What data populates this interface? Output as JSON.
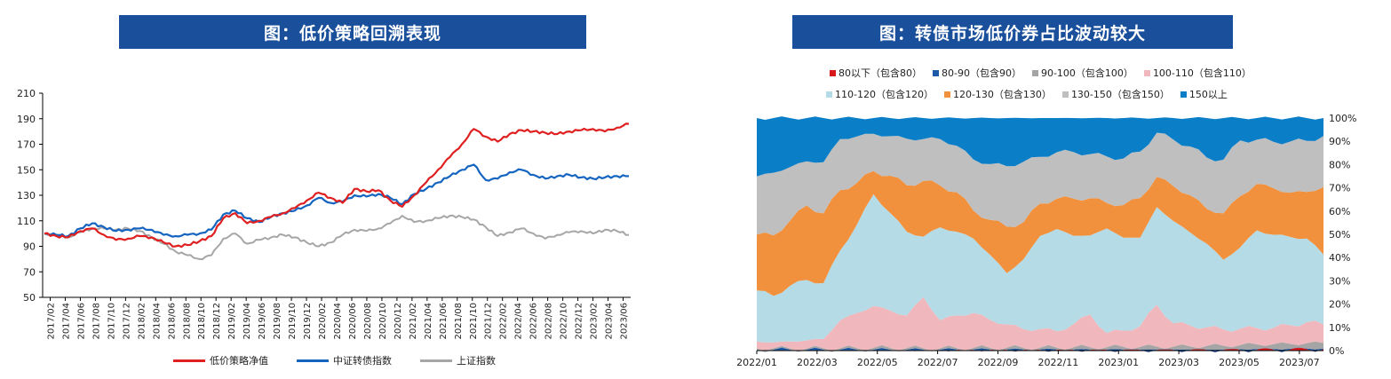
{
  "left_title": "图：低价策略回溯表现",
  "right_title": "图：转债市场低价券占比波动较大",
  "colors": {
    "banner": "#1a4f9c",
    "red": "#e02020",
    "blue": "#1565c0",
    "gray": "#a6a6a6"
  },
  "chart_data": [
    {
      "type": "line",
      "title": "图：低价策略回溯表现",
      "ylim": [
        50,
        210
      ],
      "yticks": [
        50,
        70,
        90,
        110,
        130,
        150,
        170,
        190,
        210
      ],
      "xticks": [
        "2017/02",
        "2017/04",
        "2017/06",
        "2017/08",
        "2017/10",
        "2017/12",
        "2018/02",
        "2018/04",
        "2018/06",
        "2018/08",
        "2018/10",
        "2018/12",
        "2019/02",
        "2019/04",
        "2019/06",
        "2019/08",
        "2019/10",
        "2019/12",
        "2020/02",
        "2020/04",
        "2020/06",
        "2020/08",
        "2020/10",
        "2020/12",
        "2021/02",
        "2021/04",
        "2021/06",
        "2021/08",
        "2021/10",
        "2021/12",
        "2022/02",
        "2022/04",
        "2022/06",
        "2022/08",
        "2022/10",
        "2022/12",
        "2023/02",
        "2023/04",
        "2023/06"
      ],
      "grid": false,
      "legend_position": "bottom",
      "series": [
        {
          "name": "低价策略净值",
          "color": "#e02020",
          "values": [
            100,
            98,
            97,
            102,
            104,
            99,
            95,
            96,
            98,
            97,
            93,
            90,
            91,
            94,
            98,
            112,
            116,
            108,
            110,
            113,
            116,
            120,
            126,
            132,
            128,
            124,
            135,
            133,
            134,
            126,
            121,
            130,
            140,
            150,
            160,
            170,
            182,
            176,
            172,
            178,
            181,
            180,
            179,
            178,
            180,
            181,
            182,
            180,
            183,
            186
          ]
        },
        {
          "name": "中证转债指数",
          "color": "#1565c0",
          "values": [
            100,
            99,
            98,
            104,
            108,
            105,
            102,
            103,
            104,
            103,
            99,
            98,
            99,
            100,
            103,
            115,
            118,
            112,
            109,
            113,
            116,
            118,
            122,
            128,
            124,
            125,
            130,
            129,
            131,
            128,
            123,
            131,
            135,
            140,
            145,
            150,
            154,
            142,
            143,
            148,
            150,
            146,
            143,
            145,
            146,
            144,
            143,
            144,
            145,
            145
          ]
        },
        {
          "name": "上证指数",
          "color": "#a6a6a6",
          "values": [
            100,
            99,
            97,
            101,
            104,
            104,
            103,
            104,
            102,
            97,
            92,
            86,
            83,
            80,
            83,
            96,
            100,
            92,
            95,
            97,
            99,
            97,
            93,
            90,
            93,
            99,
            103,
            102,
            104,
            108,
            114,
            109,
            110,
            112,
            114,
            113,
            111,
            105,
            98,
            101,
            104,
            100,
            96,
            99,
            101,
            102,
            100,
            103,
            102,
            99
          ]
        }
      ]
    },
    {
      "type": "area",
      "title": "图：转债市场低价券占比波动较大",
      "ylim": [
        0,
        100
      ],
      "yticks": [
        "0%",
        "10%",
        "20%",
        "30%",
        "40%",
        "50%",
        "60%",
        "70%",
        "80%",
        "90%",
        "100%"
      ],
      "xticks": [
        "2022/01",
        "2022/03",
        "2022/05",
        "2022/07",
        "2022/09",
        "2022/11",
        "2023/01",
        "2023/03",
        "2023/05",
        "2023/07"
      ],
      "stacked": true,
      "legend_position": "top",
      "series": [
        {
          "name": "80以下（包含80）",
          "color": "#d7191c",
          "values": [
            0.2,
            0.2,
            0.2,
            0.2,
            0.2,
            0.2,
            0.2,
            0.2,
            0.2,
            0.2,
            0.2,
            0.2,
            0.3,
            0.3,
            0.3,
            0.3,
            0.3,
            0.3,
            0.3,
            0.3,
            0.3,
            0.3,
            0.3,
            0.3,
            0.3,
            0.3,
            0.3,
            0.3,
            0.3,
            0.3,
            0.4,
            0.4,
            0.5,
            0.6,
            0.6
          ]
        },
        {
          "name": "80-90（包含90）",
          "color": "#1f5aa8",
          "values": [
            0.2,
            0.2,
            0.2,
            0.2,
            0.2,
            0.2,
            0.2,
            0.2,
            0.2,
            0.2,
            0.2,
            0.2,
            0.2,
            0.2,
            0.2,
            0.2,
            0.2,
            0.2,
            0.2,
            0.2,
            0.2,
            0.2,
            0.2,
            0.2,
            0.2,
            0.2,
            0.2,
            0.2,
            0.2,
            0.3,
            0.3,
            0.3,
            0.3,
            0.3,
            0.3
          ]
        },
        {
          "name": "90-100（包含100）",
          "color": "#a5a5a5",
          "values": [
            0.5,
            0.6,
            0.5,
            0.5,
            0.6,
            0.6,
            0.7,
            0.8,
            0.8,
            0.7,
            0.6,
            0.6,
            0.6,
            0.7,
            0.7,
            0.8,
            0.7,
            0.8,
            0.8,
            0.9,
            1,
            1,
            1.1,
            1.1,
            1.2,
            1.2,
            1.3,
            1.5,
            1.6,
            1.8,
            2,
            2.1,
            2.1,
            2.3,
            2.4
          ]
        },
        {
          "name": "100-110（包含110）",
          "color": "#f0b8bd",
          "values": [
            3,
            2.5,
            3,
            3.5,
            4,
            12,
            15,
            18,
            16,
            14,
            22,
            12,
            14,
            15,
            12,
            10,
            8,
            8,
            7,
            10,
            14,
            6,
            7,
            9,
            18,
            10,
            9,
            8,
            7,
            7,
            7,
            7,
            8,
            9,
            8
          ]
        },
        {
          "name": "110-120（包含120）",
          "color": "#b4dbe6",
          "values": [
            22,
            20,
            24,
            26,
            24,
            30,
            38,
            48,
            42,
            36,
            26,
            40,
            36,
            32,
            28,
            22,
            30,
            40,
            44,
            38,
            34,
            45,
            40,
            38,
            42,
            44,
            40,
            36,
            30,
            35,
            42,
            40,
            38,
            36,
            30
          ]
        },
        {
          "name": "120-130（包含130）",
          "color": "#f2913d",
          "values": [
            24,
            26,
            28,
            32,
            30,
            26,
            18,
            10,
            16,
            20,
            24,
            18,
            17,
            12,
            15,
            20,
            16,
            14,
            13,
            16,
            16,
            11,
            14,
            17,
            13,
            15,
            16,
            15,
            20,
            22,
            20,
            20,
            19,
            20,
            29
          ]
        },
        {
          "name": "130-150（包含150）",
          "color": "#bfbfbf",
          "values": [
            25,
            27,
            23,
            19,
            22,
            22,
            20,
            16,
            17,
            20,
            18,
            20,
            20,
            22,
            24,
            26,
            26,
            20,
            20,
            20,
            19,
            20,
            20,
            20,
            19,
            20,
            21,
            22,
            23,
            24,
            19,
            20,
            22,
            22,
            22
          ]
        },
        {
          "name": "150以上",
          "color": "#0a7fc8",
          "values": [
            24.9,
            23.3,
            20.9,
            17.4,
            18.2,
            8.1,
            6.9,
            5.8,
            6.8,
            7.7,
            7.1,
            8.2,
            10.9,
            17.8,
            19.8,
            19.5,
            17.8,
            15.7,
            14.7,
            13.6,
            15.5,
            16.5,
            17.4,
            14.4,
            6.1,
            9.1,
            12.2,
            17,
            17.7,
            9.4,
            8.8,
            9,
            7.8,
            8.3,
            7.7
          ]
        }
      ]
    }
  ]
}
